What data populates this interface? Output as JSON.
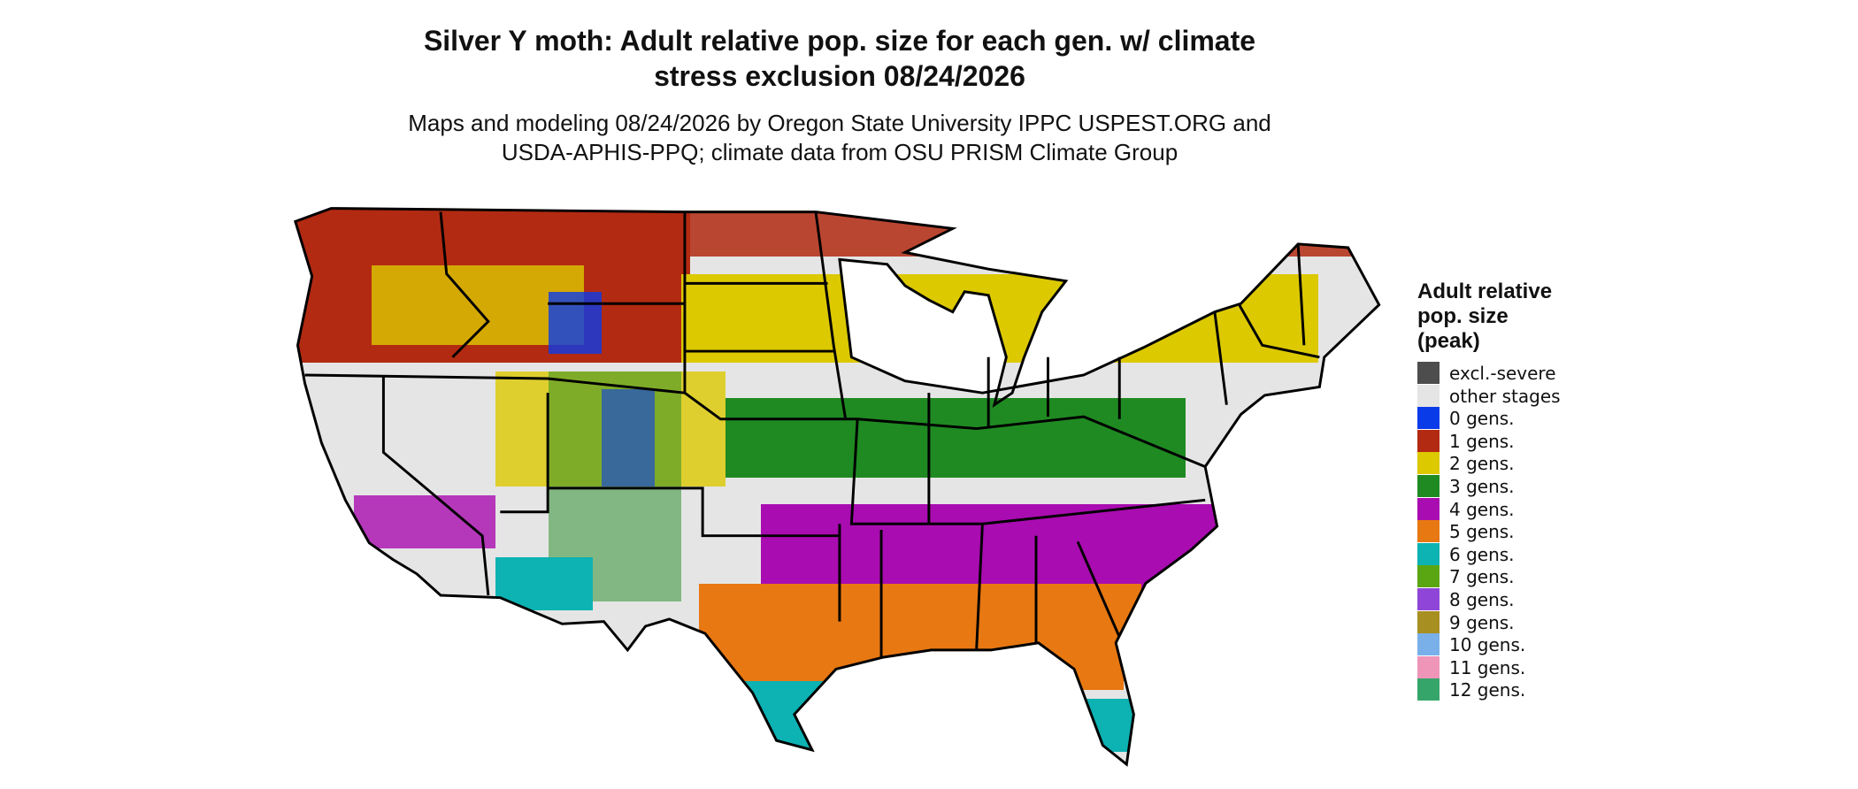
{
  "header": {
    "title_lines": [
      "Silver Y moth: Adult relative pop. size for each gen. w/ climate",
      "stress exclusion 08/24/2026"
    ],
    "subtitle_lines": [
      "Maps and modeling 08/24/2026 by Oregon State University IPPC USPEST.ORG and",
      "USDA-APHIS-PPQ; climate data from OSU PRISM Climate Group"
    ]
  },
  "legend": {
    "title_lines": [
      "Adult relative",
      "pop. size",
      "(peak)"
    ],
    "items": [
      {
        "label": "excl.-severe",
        "color": "#4d4d4d"
      },
      {
        "label": "other stages",
        "color": "#e5e5e5"
      },
      {
        "label": "0 gens.",
        "color": "#0a3be8"
      },
      {
        "label": "1 gens.",
        "color": "#b22a12"
      },
      {
        "label": "2 gens.",
        "color": "#dcc900"
      },
      {
        "label": "3 gens.",
        "color": "#1f8a22"
      },
      {
        "label": "4 gens.",
        "color": "#a90cb0"
      },
      {
        "label": "5 gens.",
        "color": "#e87812"
      },
      {
        "label": "6 gens.",
        "color": "#0db2b3"
      },
      {
        "label": "7 gens.",
        "color": "#5aa612"
      },
      {
        "label": "8 gens.",
        "color": "#8f46d8"
      },
      {
        "label": "9 gens.",
        "color": "#a88f22"
      },
      {
        "label": "10 gens.",
        "color": "#7ab0ea"
      },
      {
        "label": "11 gens.",
        "color": "#ee95b8"
      },
      {
        "label": "12 gens.",
        "color": "#35a56a"
      }
    ]
  }
}
